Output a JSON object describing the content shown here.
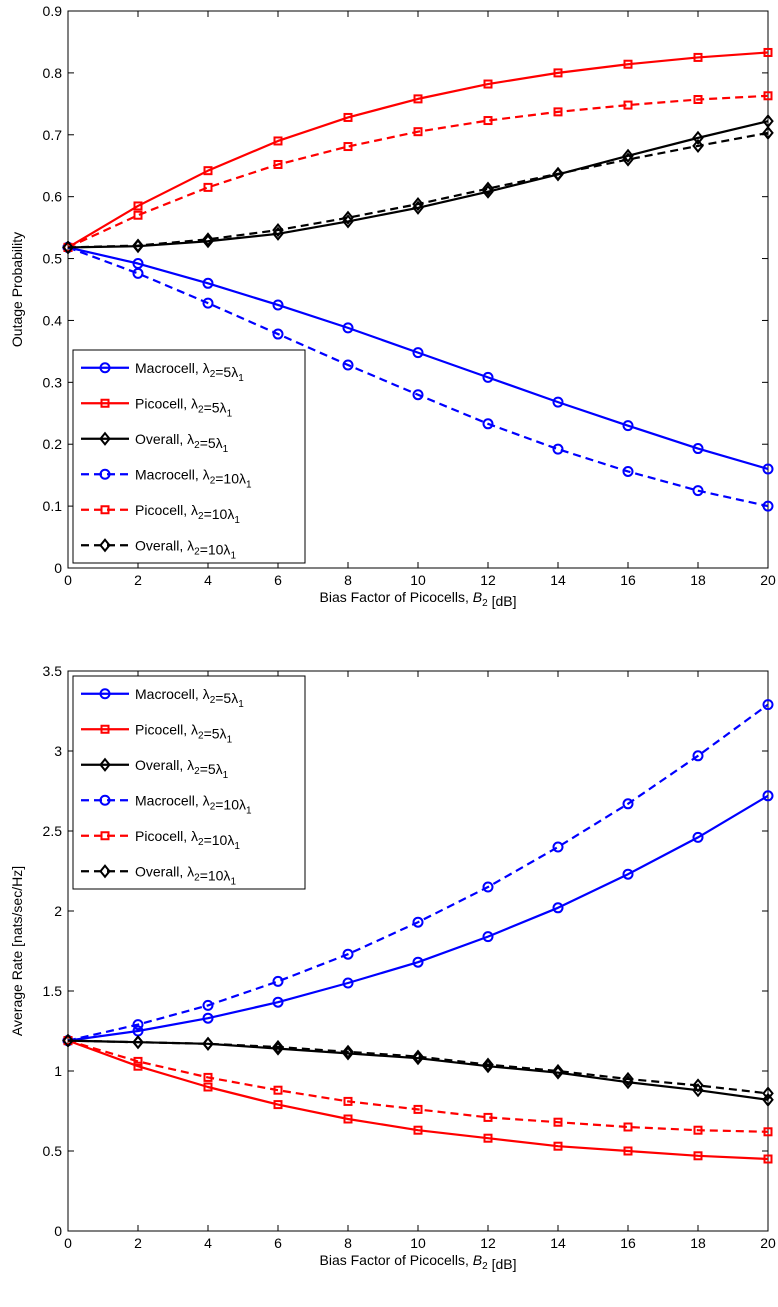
{
  "chart_data": [
    {
      "type": "line",
      "xlabel": "Bias Factor of Picocells,  B₂ [dB]",
      "ylabel": "Outage Probability",
      "xlim": [
        0,
        20
      ],
      "ylim": [
        0,
        0.9
      ],
      "xticks": [
        "0",
        "2",
        "4",
        "6",
        "8",
        "10",
        "12",
        "14",
        "16",
        "18",
        "20"
      ],
      "yticks": [
        "0",
        "0.1",
        "0.2",
        "0.3",
        "0.4",
        "0.5",
        "0.6",
        "0.7",
        "0.8",
        "0.9"
      ],
      "legend_position": "bottom-left",
      "x": [
        0,
        2,
        4,
        6,
        8,
        10,
        12,
        14,
        16,
        18,
        20
      ],
      "series": [
        {
          "name": "Macrocell, λ₂=5λ₁",
          "color": "#0000ff",
          "dash": "solid",
          "marker": "circle",
          "values": [
            0.518,
            0.492,
            0.46,
            0.425,
            0.388,
            0.348,
            0.308,
            0.268,
            0.23,
            0.193,
            0.16
          ]
        },
        {
          "name": "Picocell, λ₂=5λ₁",
          "color": "#ff0000",
          "dash": "solid",
          "marker": "square",
          "values": [
            0.518,
            0.585,
            0.642,
            0.69,
            0.728,
            0.758,
            0.782,
            0.8,
            0.814,
            0.825,
            0.833
          ]
        },
        {
          "name": "Overall, λ₂=5λ₁",
          "color": "#000000",
          "dash": "solid",
          "marker": "diamond",
          "values": [
            0.518,
            0.52,
            0.528,
            0.54,
            0.56,
            0.582,
            0.608,
            0.636,
            0.666,
            0.695,
            0.722
          ]
        },
        {
          "name": "Macrocell, λ₂=10λ₁",
          "color": "#0000ff",
          "dash": "dashed",
          "marker": "circle",
          "values": [
            0.518,
            0.476,
            0.428,
            0.378,
            0.328,
            0.28,
            0.233,
            0.192,
            0.156,
            0.125,
            0.1
          ]
        },
        {
          "name": "Picocell, λ₂=10λ₁",
          "color": "#ff0000",
          "dash": "dashed",
          "marker": "square",
          "values": [
            0.518,
            0.57,
            0.615,
            0.652,
            0.681,
            0.705,
            0.723,
            0.737,
            0.748,
            0.757,
            0.763
          ]
        },
        {
          "name": "Overall, λ₂=10λ₁",
          "color": "#000000",
          "dash": "dashed",
          "marker": "diamond",
          "values": [
            0.518,
            0.521,
            0.531,
            0.546,
            0.566,
            0.588,
            0.613,
            0.637,
            0.66,
            0.682,
            0.703
          ]
        }
      ]
    },
    {
      "type": "line",
      "xlabel": "Bias Factor of Picocells,  B₂ [dB]",
      "ylabel": "Average Rate  [nats/sec/Hz]",
      "xlim": [
        0,
        20
      ],
      "ylim": [
        0,
        3.5
      ],
      "xticks": [
        "0",
        "2",
        "4",
        "6",
        "8",
        "10",
        "12",
        "14",
        "16",
        "18",
        "20"
      ],
      "yticks": [
        "0",
        "0.5",
        "1",
        "1.5",
        "2",
        "2.5",
        "3",
        "3.5"
      ],
      "legend_position": "top-left",
      "x": [
        0,
        2,
        4,
        6,
        8,
        10,
        12,
        14,
        16,
        18,
        20
      ],
      "series": [
        {
          "name": "Macrocell, λ₂=5λ₁",
          "color": "#0000ff",
          "dash": "solid",
          "marker": "circle",
          "values": [
            1.19,
            1.25,
            1.33,
            1.43,
            1.55,
            1.68,
            1.84,
            2.02,
            2.23,
            2.46,
            2.72
          ]
        },
        {
          "name": "Picocell, λ₂=5λ₁",
          "color": "#ff0000",
          "dash": "solid",
          "marker": "square",
          "values": [
            1.19,
            1.03,
            0.9,
            0.79,
            0.7,
            0.63,
            0.58,
            0.53,
            0.5,
            0.47,
            0.45
          ]
        },
        {
          "name": "Overall, λ₂=5λ₁",
          "color": "#000000",
          "dash": "solid",
          "marker": "diamond",
          "values": [
            1.19,
            1.18,
            1.17,
            1.14,
            1.11,
            1.08,
            1.03,
            0.99,
            0.93,
            0.88,
            0.82
          ]
        },
        {
          "name": "Macrocell, λ₂=10λ₁",
          "color": "#0000ff",
          "dash": "dashed",
          "marker": "circle",
          "values": [
            1.19,
            1.29,
            1.41,
            1.56,
            1.73,
            1.93,
            2.15,
            2.4,
            2.67,
            2.97,
            3.29
          ]
        },
        {
          "name": "Picocell, λ₂=10λ₁",
          "color": "#ff0000",
          "dash": "dashed",
          "marker": "square",
          "values": [
            1.19,
            1.06,
            0.96,
            0.88,
            0.81,
            0.76,
            0.71,
            0.68,
            0.65,
            0.63,
            0.62
          ]
        },
        {
          "name": "Overall, λ₂=10λ₁",
          "color": "#000000",
          "dash": "dashed",
          "marker": "diamond",
          "values": [
            1.19,
            1.18,
            1.17,
            1.15,
            1.12,
            1.09,
            1.04,
            1.0,
            0.95,
            0.91,
            0.86
          ]
        }
      ]
    }
  ]
}
